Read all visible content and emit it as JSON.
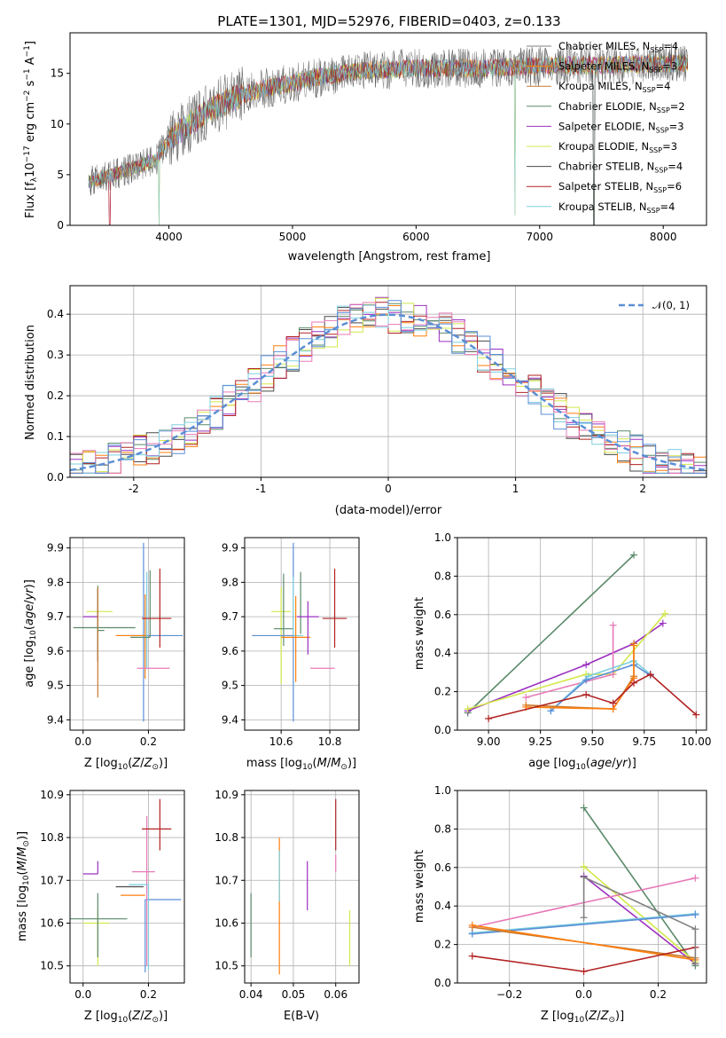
{
  "chart_data": [
    {
      "type": "line",
      "id": "spectrum",
      "title": "PLATE=1301, MJD=52976, FIBERID=0403, z=0.133",
      "xlabel": "wavelength [Angstrom, rest frame]",
      "ylabel": "Flux [f_λ 10^-17 erg cm^-2 s^-1 A^-1]",
      "xlim": [
        3200,
        8350
      ],
      "ylim": [
        0,
        19
      ],
      "xticks": [
        4000,
        5000,
        6000,
        7000,
        8000
      ],
      "yticks": [
        0,
        5,
        10,
        15
      ],
      "grid": false,
      "legend_placement": "upper right",
      "continuum": {
        "x": [
          3350,
          3500,
          3700,
          3900,
          4000,
          4200,
          4400,
          4600,
          4800,
          5000,
          5200,
          5500,
          6000,
          6500,
          7000,
          7200,
          7500,
          8000,
          8200
        ],
        "y": [
          4.3,
          4.8,
          5.6,
          6.5,
          8.5,
          10.3,
          11.8,
          12.9,
          13.6,
          14.0,
          14.6,
          15.2,
          15.5,
          15.5,
          15.7,
          15.8,
          15.8,
          16.0,
          16.0
        ]
      },
      "dropouts": [
        [
          3520,
          0.0
        ],
        [
          3920,
          0.0
        ],
        [
          6800,
          1.0
        ],
        [
          7440,
          0.0
        ]
      ],
      "series": [
        {
          "name": "Chabrier MILES, N_SSP=4",
          "label": "Chabrier MILES, N",
          "sub": "SSP",
          "tail": "=4",
          "color": "#808080"
        },
        {
          "name": "Salpeter MILES, N_SSP=3",
          "label": "Salpeter MILES, N",
          "sub": "SSP",
          "tail": "=3",
          "color": "#ff7f0e"
        },
        {
          "name": "Kroupa MILES, N_SSP=4",
          "label": "Kroupa MILES, N",
          "sub": "SSP",
          "tail": "=4",
          "color": "#c87a2e"
        },
        {
          "name": "Chabrier ELODIE, N_SSP=2",
          "label": "Chabrier ELODIE, N",
          "sub": "SSP",
          "tail": "=2",
          "color": "#5a8a6a"
        },
        {
          "name": "Salpeter ELODIE, N_SSP=3",
          "label": "Salpeter ELODIE, N",
          "sub": "SSP",
          "tail": "=3",
          "color": "#9b30c0"
        },
        {
          "name": "Kroupa ELODIE, N_SSP=3",
          "label": "Kroupa ELODIE, N",
          "sub": "SSP",
          "tail": "=3",
          "color": "#d4e84a"
        },
        {
          "name": "Chabrier STELIB, N_SSP=4",
          "label": "Chabrier STELIB, N",
          "sub": "SSP",
          "tail": "=4",
          "color": "#4a4a4a"
        },
        {
          "name": "Salpeter STELIB, N_SSP=6",
          "label": "Salpeter STELIB, N",
          "sub": "SSP",
          "tail": "=6",
          "color": "#b22222"
        },
        {
          "name": "Kroupa STELIB, N_SSP=4",
          "label": "Kroupa STELIB, N",
          "sub": "SSP",
          "tail": "=4",
          "color": "#7ecfe0"
        }
      ]
    },
    {
      "type": "line",
      "id": "residuals",
      "xlabel": "(data-model)/error",
      "ylabel": "Normed distribution",
      "xlim": [
        -2.5,
        2.5
      ],
      "ylim": [
        0,
        0.47
      ],
      "xticks": [
        -2,
        -1,
        0,
        1,
        2
      ],
      "yticks": [
        0.0,
        0.1,
        0.2,
        0.3,
        0.4
      ],
      "grid": true,
      "legend_placement": "upper right",
      "reference": {
        "name": "N(0,1)",
        "label": "𝒩(0, 1)",
        "color": "#5b8fd6"
      },
      "bin_width": 0.1,
      "series_colors": [
        "#4a4a4a",
        "#ff7f0e",
        "#5a8a6a",
        "#9b30c0",
        "#d4e84a",
        "#b22222",
        "#7ecfe0",
        "#e87ab8",
        "#5b8fd6"
      ]
    },
    {
      "type": "scatter",
      "id": "age-vs-Z",
      "xlabel": "Z [log10(Z/Z☉)]",
      "ylabel": "age [log10(age/yr)]",
      "xlim": [
        -0.04,
        0.31
      ],
      "ylim": [
        9.37,
        9.93
      ],
      "xticks": [
        0.0,
        0.2
      ],
      "yticks": [
        9.4,
        9.5,
        9.6,
        9.7,
        9.8,
        9.9
      ],
      "grid": true,
      "points": [
        {
          "x": 0.045,
          "y": 9.715,
          "xerr": [
            0.035,
            0.045
          ],
          "yerr": [
            0.13,
            0.0
          ],
          "color": "#d4e84a"
        },
        {
          "x": 0.045,
          "y": 9.7,
          "xerr": [
            0.045,
            0.0
          ],
          "yerr": [
            0.13,
            0.08
          ],
          "color": "#9b30c0"
        },
        {
          "x": 0.045,
          "y": 9.66,
          "xerr": [
            0.0,
            0.02
          ],
          "yerr": [
            0.09,
            0.13
          ],
          "color": "#5a8a6a"
        },
        {
          "x": 0.045,
          "y": 9.62,
          "xerr": [
            0.0,
            0.0
          ],
          "yerr": [
            0.155,
            0.165
          ],
          "color": "#c87a2e"
        },
        {
          "x": 0.045,
          "y": 9.668,
          "xerr": [
            0.075,
            0.115
          ],
          "yerr": [
            0.0,
            0.0
          ],
          "color": "#5a8a6a"
        },
        {
          "x": 0.185,
          "y": 9.645,
          "xerr": [
            0.08,
            0.12
          ],
          "yerr": [
            0.25,
            0.27
          ],
          "color": "#5b8fd6"
        },
        {
          "x": 0.19,
          "y": 9.645,
          "xerr": [
            0.09,
            0.0
          ],
          "yerr": [
            0.125,
            0.12
          ],
          "color": "#ff7f0e"
        },
        {
          "x": 0.195,
          "y": 9.64,
          "xerr": [
            0.0,
            0.0
          ],
          "yerr": [
            0.09,
            0.19
          ],
          "color": "#7ecfe0"
        },
        {
          "x": 0.205,
          "y": 9.64,
          "xerr": [
            0.06,
            0.0
          ],
          "yerr": [
            0.0,
            0.195
          ],
          "color": "#5a8a6a"
        },
        {
          "x": 0.205,
          "y": 9.55,
          "xerr": [
            0.04,
            0.06
          ],
          "yerr": [
            0.0,
            0.0
          ],
          "color": "#e87ab8"
        },
        {
          "x": 0.235,
          "y": 9.695,
          "xerr": [
            0.055,
            0.035
          ],
          "yerr": [
            0.085,
            0.145
          ],
          "color": "#b22222"
        }
      ]
    },
    {
      "type": "scatter",
      "id": "age-vs-mass",
      "xlabel": "mass [log10(M/M☉)]",
      "ylabel": "",
      "xlim": [
        10.45,
        10.92
      ],
      "ylim": [
        9.37,
        9.93
      ],
      "xticks": [
        10.6,
        10.8
      ],
      "yticks": [
        9.4,
        9.5,
        9.6,
        9.7,
        9.8,
        9.9
      ],
      "grid": true,
      "points": [
        {
          "x": 10.6,
          "y": 9.715,
          "xerr": [
            0.04,
            0.04
          ],
          "yerr": [
            0.21,
            0.07
          ],
          "color": "#d4e84a"
        },
        {
          "x": 10.61,
          "y": 9.665,
          "xerr": [
            0.04,
            0.04
          ],
          "yerr": [
            0.05,
            0.16
          ],
          "color": "#5a8a6a"
        },
        {
          "x": 10.65,
          "y": 9.645,
          "xerr": [
            0.17,
            0.0
          ],
          "yerr": [
            0.25,
            0.27
          ],
          "color": "#5b8fd6"
        },
        {
          "x": 10.65,
          "y": 9.645,
          "xerr": [
            0.0,
            0.04
          ],
          "yerr": [
            0.0,
            0.17
          ],
          "color": "#7ecfe0"
        },
        {
          "x": 10.66,
          "y": 9.64,
          "xerr": [
            0.06,
            0.06
          ],
          "yerr": [
            0.13,
            0.12
          ],
          "color": "#ff7f0e"
        },
        {
          "x": 10.68,
          "y": 9.65,
          "xerr": [
            0.0,
            0.0
          ],
          "yerr": [
            0.0,
            0.18
          ],
          "color": "#5a8a6a"
        },
        {
          "x": 10.71,
          "y": 9.7,
          "xerr": [
            0.045,
            0.045
          ],
          "yerr": [
            0.11,
            0.045
          ],
          "color": "#9b30c0"
        },
        {
          "x": 10.72,
          "y": 9.55,
          "xerr": [
            0.0,
            0.1
          ],
          "yerr": [
            0.0,
            0.0
          ],
          "color": "#e87ab8"
        },
        {
          "x": 10.82,
          "y": 9.695,
          "xerr": [
            0.05,
            0.05
          ],
          "yerr": [
            0.085,
            0.145
          ],
          "color": "#b22222"
        }
      ]
    },
    {
      "type": "line",
      "id": "weight-vs-age",
      "xlabel": "age [log10(age/yr)]",
      "ylabel": "mass weight",
      "xlim": [
        8.85,
        10.05
      ],
      "ylim": [
        0.0,
        1.0
      ],
      "xticks": [
        9.0,
        9.25,
        9.5,
        9.75,
        10.0
      ],
      "xticklabels": [
        "9.00",
        "9.25",
        "9.50",
        "9.75",
        "10.00"
      ],
      "yticks": [
        0.0,
        0.2,
        0.4,
        0.6,
        0.8,
        1.0
      ],
      "grid": true,
      "series": [
        {
          "color": "#5a8a6a",
          "x": [
            8.9,
            9.7
          ],
          "y": [
            0.09,
            0.91
          ]
        },
        {
          "color": "#9b30c0",
          "x": [
            8.9,
            9.47,
            9.7,
            9.84
          ],
          "y": [
            0.1,
            0.34,
            0.45,
            0.555
          ]
        },
        {
          "color": "#d4e84a",
          "x": [
            8.9,
            9.47,
            9.6,
            9.85
          ],
          "y": [
            0.11,
            0.29,
            0.29,
            0.605
          ]
        },
        {
          "color": "#e87ab8",
          "x": [
            9.18,
            9.6,
            9.6
          ],
          "y": [
            0.17,
            0.29,
            0.545
          ]
        },
        {
          "color": "#7ecfe0",
          "x": [
            9.3,
            9.48,
            9.7,
            9.78
          ],
          "y": [
            0.1,
            0.28,
            0.36,
            0.29
          ]
        },
        {
          "color": "#5b8fd6",
          "x": [
            9.3,
            9.47,
            9.7,
            9.78
          ],
          "y": [
            0.1,
            0.26,
            0.34,
            0.285
          ]
        },
        {
          "color": "#c87a2e",
          "x": [
            9.18,
            9.6,
            9.7,
            9.7
          ],
          "y": [
            0.13,
            0.11,
            0.28,
            0.45
          ]
        },
        {
          "color": "#ff7f0e",
          "x": [
            9.18,
            9.6,
            9.7,
            9.7
          ],
          "y": [
            0.12,
            0.11,
            0.27,
            0.44
          ]
        },
        {
          "color": "#b22222",
          "x": [
            9.0,
            9.47,
            9.6,
            9.7,
            9.78,
            10.0
          ],
          "y": [
            0.06,
            0.185,
            0.14,
            0.245,
            0.29,
            0.08
          ]
        }
      ]
    },
    {
      "type": "scatter",
      "id": "mass-vs-Z",
      "xlabel": "Z [log10(Z/Z☉)]",
      "ylabel": "mass [log10(M/M☉)]",
      "xlim": [
        -0.04,
        0.31
      ],
      "ylim": [
        10.46,
        10.91
      ],
      "xticks": [
        0.0,
        0.2
      ],
      "yticks": [
        10.5,
        10.6,
        10.7,
        10.8,
        10.9
      ],
      "grid": true,
      "points": [
        {
          "x": 0.045,
          "y": 10.6,
          "xerr": [
            0.045,
            0.035
          ],
          "yerr": [
            0.1,
            0.03
          ],
          "color": "#d4e84a"
        },
        {
          "x": 0.045,
          "y": 10.61,
          "xerr": [
            0.09,
            0.09
          ],
          "yerr": [
            0.09,
            0.06
          ],
          "color": "#5a8a6a"
        },
        {
          "x": 0.045,
          "y": 10.715,
          "xerr": [
            0.045,
            0.0
          ],
          "yerr": [
            0.0,
            0.03
          ],
          "color": "#9b30c0"
        },
        {
          "x": 0.1,
          "y": 10.685,
          "xerr": [
            0.0,
            0.085
          ],
          "yerr": [
            0.0,
            0.0
          ],
          "color": "#4a4a4a"
        },
        {
          "x": 0.115,
          "y": 10.665,
          "xerr": [
            0.0,
            0.075
          ],
          "yerr": [
            0.0,
            0.0
          ],
          "color": "#ff7f0e"
        },
        {
          "x": 0.15,
          "y": 10.72,
          "xerr": [
            0.0,
            0.07
          ],
          "yerr": [
            0.0,
            0.0
          ],
          "color": "#e87ab8"
        },
        {
          "x": 0.19,
          "y": 10.655,
          "xerr": [
            0.0,
            0.11
          ],
          "yerr": [
            0.17,
            0.0
          ],
          "color": "#5b8fd6"
        },
        {
          "x": 0.195,
          "y": 10.75,
          "xerr": [
            0.0,
            0.0
          ],
          "yerr": [
            0.25,
            0.1
          ],
          "color": "#e87ab8"
        },
        {
          "x": 0.2,
          "y": 10.69,
          "xerr": [
            0.06,
            0.0
          ],
          "yerr": [
            0.2,
            0.0
          ],
          "color": "#7ecfe0"
        },
        {
          "x": 0.235,
          "y": 10.82,
          "xerr": [
            0.055,
            0.035
          ],
          "yerr": [
            0.05,
            0.07
          ],
          "color": "#b22222"
        }
      ]
    },
    {
      "type": "scatter",
      "id": "mass-vs-EBV",
      "xlabel": "E(B-V)",
      "ylabel": "",
      "xlim": [
        0.0385,
        0.0655
      ],
      "ylim": [
        10.46,
        10.91
      ],
      "xticks": [
        0.04,
        0.05,
        0.06
      ],
      "yticks": [
        10.5,
        10.6,
        10.7,
        10.8,
        10.9
      ],
      "grid": true,
      "points": [
        {
          "x": 0.04,
          "y": 10.6,
          "yerr": [
            0.08,
            0.07
          ],
          "color": "#5a8a6a"
        },
        {
          "x": 0.0467,
          "y": 10.7,
          "yerr": [
            0.22,
            0.1
          ],
          "color": "#ff7f0e"
        },
        {
          "x": 0.0467,
          "y": 10.7,
          "yerr": [
            0.05,
            0.07
          ],
          "color": "#7ecfe0"
        },
        {
          "x": 0.0533,
          "y": 10.69,
          "yerr": [
            0.06,
            0.055
          ],
          "color": "#9b30c0"
        },
        {
          "x": 0.06,
          "y": 10.83,
          "yerr": [
            0.06,
            0.06
          ],
          "color": "#b22222"
        },
        {
          "x": 0.06,
          "y": 10.72,
          "yerr": [
            0.0,
            0.04
          ],
          "color": "#e87ab8"
        },
        {
          "x": 0.0633,
          "y": 10.57,
          "yerr": [
            0.07,
            0.06
          ],
          "color": "#d4e84a"
        }
      ]
    },
    {
      "type": "line",
      "id": "weight-vs-Z",
      "xlabel": "Z [log10(Z/Z☉)]",
      "ylabel": "mass weight",
      "xlim": [
        -0.34,
        0.33
      ],
      "ylim": [
        0.0,
        1.0
      ],
      "xticks": [
        -0.2,
        0.0,
        0.2
      ],
      "xticklabels": [
        "−0.2",
        "0.0",
        "0.2"
      ],
      "yticks": [
        0.0,
        0.2,
        0.4,
        0.6,
        0.8,
        1.0
      ],
      "grid": true,
      "series": [
        {
          "color": "#5a8a6a",
          "x": [
            0.0,
            0.3
          ],
          "y": [
            0.91,
            0.09
          ]
        },
        {
          "color": "#9b30c0",
          "x": [
            0.0,
            0.3
          ],
          "y": [
            0.555,
            0.1
          ]
        },
        {
          "color": "#d4e84a",
          "x": [
            0.0,
            0.3
          ],
          "y": [
            0.605,
            0.11
          ]
        },
        {
          "color": "#e87ab8",
          "x": [
            -0.3,
            0.3
          ],
          "y": [
            0.29,
            0.545
          ]
        },
        {
          "color": "#7ecfe0",
          "x": [
            -0.3,
            0.3
          ],
          "y": [
            0.26,
            0.36
          ]
        },
        {
          "color": "#5b8fd6",
          "x": [
            -0.3,
            0.3
          ],
          "y": [
            0.255,
            0.355
          ]
        },
        {
          "color": "#c87a2e",
          "x": [
            -0.3,
            0.3
          ],
          "y": [
            0.29,
            0.13
          ]
        },
        {
          "color": "#ff7f0e",
          "x": [
            -0.3,
            0.3
          ],
          "y": [
            0.3,
            0.12
          ]
        },
        {
          "color": "#b22222",
          "x": [
            -0.3,
            0.0,
            0.3
          ],
          "y": [
            0.14,
            0.06,
            0.185
          ]
        },
        {
          "color": "#808080",
          "x": [
            0.0,
            0.0,
            0.3,
            0.3
          ],
          "y": [
            0.34,
            0.55,
            0.28,
            0.1
          ]
        }
      ]
    }
  ]
}
